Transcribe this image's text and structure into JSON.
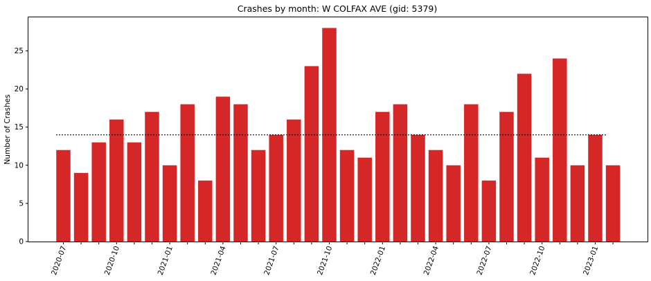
{
  "chart_data": {
    "type": "bar",
    "title": "Crashes by month: W COLFAX AVE (gid: 5379)",
    "xlabel": "",
    "ylabel": "Number of Crashes",
    "categories": [
      "2020-07",
      "2020-08",
      "2020-09",
      "2020-10",
      "2020-11",
      "2020-12",
      "2021-01",
      "2021-02",
      "2021-03",
      "2021-04",
      "2021-05",
      "2021-06",
      "2021-07",
      "2021-08",
      "2021-09",
      "2021-10",
      "2021-11",
      "2021-12",
      "2022-01",
      "2022-02",
      "2022-03",
      "2022-04",
      "2022-05",
      "2022-06",
      "2022-07",
      "2022-08",
      "2022-09",
      "2022-10",
      "2022-11",
      "2022-12",
      "2023-01",
      "2023-02"
    ],
    "values": [
      12,
      9,
      13,
      16,
      13,
      17,
      10,
      18,
      8,
      19,
      18,
      12,
      14,
      16,
      23,
      28,
      12,
      11,
      17,
      18,
      14,
      12,
      10,
      18,
      8,
      17,
      22,
      11,
      24,
      10,
      14,
      10
    ],
    "xtick_labels": [
      "2020-07",
      "2020-10",
      "2021-01",
      "2021-04",
      "2021-07",
      "2021-10",
      "2022-01",
      "2022-04",
      "2022-07",
      "2022-10",
      "2023-01"
    ],
    "yticks": [
      0,
      5,
      10,
      15,
      20,
      25
    ],
    "ylim": [
      0,
      29.4
    ],
    "reference_line": {
      "value": 14,
      "style": "dotted",
      "color": "#000000"
    },
    "bar_color": "#d62728",
    "grid": false
  }
}
